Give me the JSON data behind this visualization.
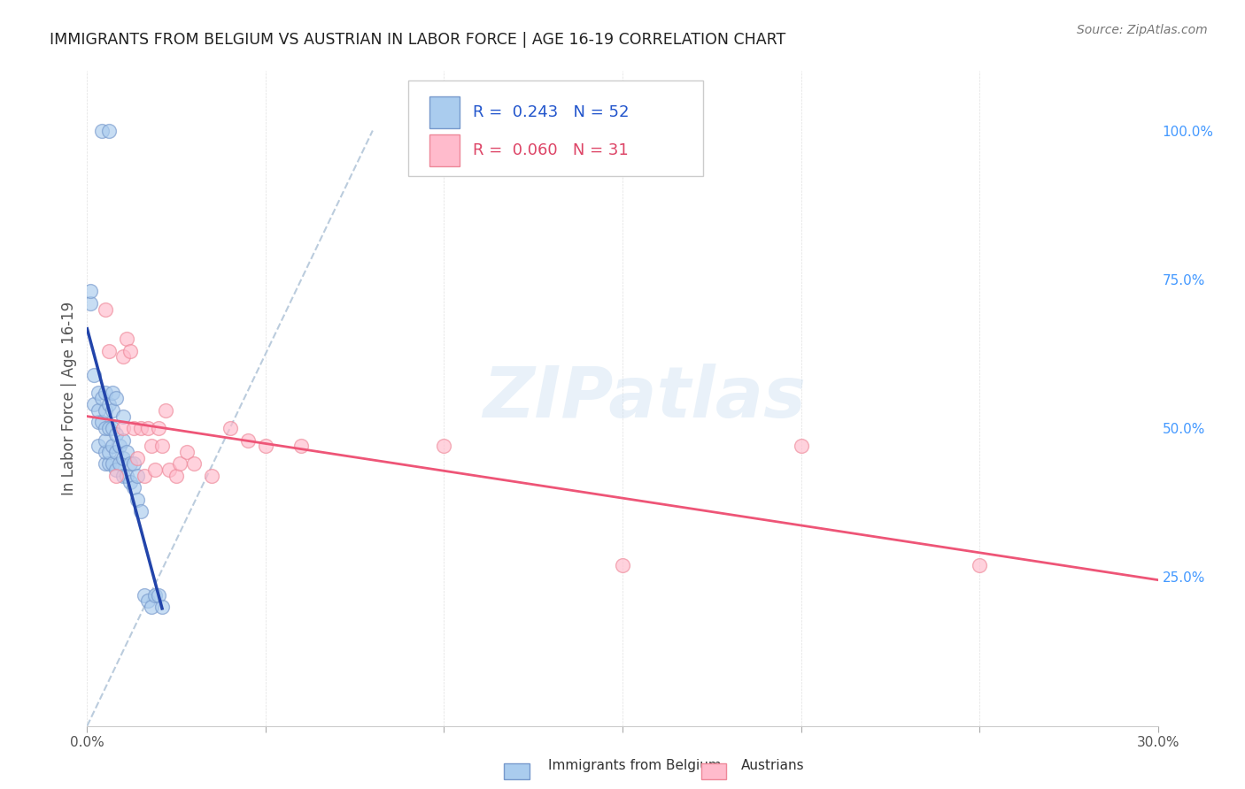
{
  "title": "IMMIGRANTS FROM BELGIUM VS AUSTRIAN IN LABOR FORCE | AGE 16-19 CORRELATION CHART",
  "source": "Source: ZipAtlas.com",
  "ylabel": "In Labor Force | Age 16-19",
  "xlim": [
    0.0,
    0.3
  ],
  "ylim": [
    0.0,
    1.1
  ],
  "x_ticks": [
    0.0,
    0.05,
    0.1,
    0.15,
    0.2,
    0.25,
    0.3
  ],
  "x_tick_labels": [
    "0.0%",
    "",
    "",
    "",
    "",
    "",
    "30.0%"
  ],
  "y_ticks_right": [
    0.25,
    0.5,
    0.75,
    1.0
  ],
  "y_tick_labels_right": [
    "25.0%",
    "50.0%",
    "75.0%",
    "100.0%"
  ],
  "belgium_color": "#aaccee",
  "belgian_edge": "#7799cc",
  "austrian_color": "#ffbbcc",
  "austrian_edge": "#ee8899",
  "belgium_R": 0.243,
  "belgium_N": 52,
  "austrian_R": 0.06,
  "austrian_N": 31,
  "blue_line_color": "#2244aa",
  "pink_line_color": "#ee5577",
  "diagonal_line_color": "#bbccdd",
  "blue_text_color": "#2255cc",
  "pink_text_color": "#dd4466",
  "belgium_x": [
    0.001,
    0.001,
    0.002,
    0.002,
    0.003,
    0.003,
    0.003,
    0.003,
    0.004,
    0.004,
    0.005,
    0.005,
    0.005,
    0.005,
    0.005,
    0.005,
    0.006,
    0.006,
    0.006,
    0.006,
    0.007,
    0.007,
    0.007,
    0.007,
    0.007,
    0.008,
    0.008,
    0.008,
    0.008,
    0.009,
    0.009,
    0.01,
    0.01,
    0.01,
    0.01,
    0.011,
    0.011,
    0.012,
    0.012,
    0.013,
    0.013,
    0.014,
    0.014,
    0.015,
    0.016,
    0.017,
    0.018,
    0.019,
    0.02,
    0.021,
    0.004,
    0.006
  ],
  "belgium_y": [
    0.71,
    0.73,
    0.54,
    0.59,
    0.47,
    0.51,
    0.53,
    0.56,
    0.51,
    0.55,
    0.44,
    0.46,
    0.48,
    0.5,
    0.53,
    0.56,
    0.44,
    0.46,
    0.5,
    0.54,
    0.44,
    0.47,
    0.5,
    0.53,
    0.56,
    0.43,
    0.46,
    0.49,
    0.55,
    0.44,
    0.47,
    0.42,
    0.45,
    0.48,
    0.52,
    0.42,
    0.46,
    0.41,
    0.44,
    0.4,
    0.44,
    0.38,
    0.42,
    0.36,
    0.22,
    0.21,
    0.2,
    0.22,
    0.22,
    0.2,
    1.0,
    1.0
  ],
  "austrian_x": [
    0.005,
    0.006,
    0.008,
    0.01,
    0.01,
    0.011,
    0.012,
    0.013,
    0.014,
    0.015,
    0.016,
    0.017,
    0.018,
    0.019,
    0.02,
    0.021,
    0.022,
    0.023,
    0.025,
    0.026,
    0.028,
    0.03,
    0.035,
    0.04,
    0.045,
    0.05,
    0.06,
    0.1,
    0.15,
    0.2,
    0.25
  ],
  "austrian_y": [
    0.7,
    0.63,
    0.42,
    0.62,
    0.5,
    0.65,
    0.63,
    0.5,
    0.45,
    0.5,
    0.42,
    0.5,
    0.47,
    0.43,
    0.5,
    0.47,
    0.53,
    0.43,
    0.42,
    0.44,
    0.46,
    0.44,
    0.42,
    0.5,
    0.48,
    0.47,
    0.47,
    0.47,
    0.27,
    0.47,
    0.27
  ]
}
